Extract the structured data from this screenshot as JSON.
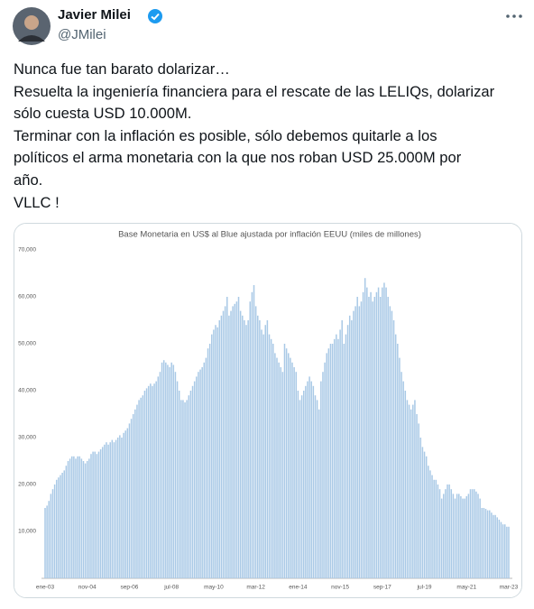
{
  "tweet": {
    "name": "Javier Milei",
    "handle": "@JMilei",
    "lines": [
      "Nunca fue tan barato dolarizar…",
      "Resuelta la ingeniería financiera para el rescate de las LELIQs, dolarizar",
      "sólo cuesta USD 10.000M.",
      "Terminar con la inflación es posible, sólo debemos quitarle a los",
      "políticos el arma monetaria con la que nos roban USD 25.000M  por",
      "año.",
      "VLLC !"
    ]
  },
  "chart_data": {
    "type": "bar",
    "title": "Base Monetaria en US$ al Blue ajustada por inflación EEUU (miles de millones)",
    "color": "#a9c9e6",
    "grid": false,
    "ylim": [
      0,
      70000
    ],
    "yticks": [
      {
        "value": 10000,
        "label": "10,000"
      },
      {
        "value": 20000,
        "label": "20,000"
      },
      {
        "value": 30000,
        "label": "30,000"
      },
      {
        "value": 40000,
        "label": "40,000"
      },
      {
        "value": 50000,
        "label": "50,000"
      },
      {
        "value": 60000,
        "label": "60,000"
      },
      {
        "value": 70000,
        "label": "70,000"
      }
    ],
    "categories": [
      "ene-03",
      null,
      null,
      null,
      null,
      null,
      null,
      null,
      null,
      null,
      null,
      null,
      null,
      null,
      null,
      null,
      null,
      null,
      null,
      null,
      null,
      null,
      "nov-04",
      null,
      null,
      null,
      null,
      null,
      null,
      null,
      null,
      null,
      null,
      null,
      null,
      null,
      null,
      null,
      null,
      null,
      null,
      null,
      null,
      null,
      "sep-06",
      null,
      null,
      null,
      null,
      null,
      null,
      null,
      null,
      null,
      null,
      null,
      null,
      null,
      null,
      null,
      null,
      null,
      null,
      null,
      null,
      null,
      "jul-08",
      null,
      null,
      null,
      null,
      null,
      null,
      null,
      null,
      null,
      null,
      null,
      null,
      null,
      null,
      null,
      null,
      null,
      null,
      null,
      null,
      null,
      "may-10",
      null,
      null,
      null,
      null,
      null,
      null,
      null,
      null,
      null,
      null,
      null,
      null,
      null,
      null,
      null,
      null,
      null,
      null,
      null,
      null,
      null,
      "mar-12",
      null,
      null,
      null,
      null,
      null,
      null,
      null,
      null,
      null,
      null,
      null,
      null,
      null,
      null,
      null,
      null,
      null,
      null,
      null,
      null,
      null,
      "ene-14",
      null,
      null,
      null,
      null,
      null,
      null,
      null,
      null,
      null,
      null,
      null,
      null,
      null,
      null,
      null,
      null,
      null,
      null,
      null,
      null,
      null,
      "nov-15",
      null,
      null,
      null,
      null,
      null,
      null,
      null,
      null,
      null,
      null,
      null,
      null,
      null,
      null,
      null,
      null,
      null,
      null,
      null,
      null,
      null,
      "sep-17",
      null,
      null,
      null,
      null,
      null,
      null,
      null,
      null,
      null,
      null,
      null,
      null,
      null,
      null,
      null,
      null,
      null,
      null,
      null,
      null,
      null,
      "jul-19",
      null,
      null,
      null,
      null,
      null,
      null,
      null,
      null,
      null,
      null,
      null,
      null,
      null,
      null,
      null,
      null,
      null,
      null,
      null,
      null,
      null,
      "may-21",
      null,
      null,
      null,
      null,
      null,
      null,
      null,
      null,
      null,
      null,
      null,
      null,
      null,
      null,
      null,
      null,
      null,
      null,
      null,
      null,
      null,
      "mar-23"
    ],
    "values": [
      15000,
      15500,
      16500,
      18000,
      19000,
      20000,
      21000,
      21500,
      22000,
      22500,
      23000,
      24000,
      25000,
      25500,
      26000,
      26000,
      25500,
      26000,
      26000,
      25500,
      25000,
      24500,
      25000,
      25500,
      26500,
      27000,
      27000,
      26500,
      27000,
      27500,
      28000,
      28500,
      29000,
      28500,
      29000,
      29500,
      29000,
      29500,
      30000,
      30500,
      30000,
      31000,
      31500,
      32000,
      33000,
      34000,
      35000,
      36000,
      37000,
      38000,
      38500,
      39000,
      40000,
      40500,
      41000,
      41500,
      41000,
      41500,
      42000,
      43000,
      44000,
      46000,
      46500,
      46000,
      45500,
      45000,
      46000,
      45500,
      44000,
      42000,
      40000,
      38000,
      38000,
      37500,
      38000,
      39000,
      40000,
      41000,
      42000,
      43000,
      44000,
      44500,
      45000,
      46000,
      47000,
      49000,
      50000,
      52000,
      53000,
      54000,
      53500,
      55000,
      56000,
      57000,
      58000,
      60000,
      56000,
      57000,
      58000,
      58500,
      59000,
      60000,
      57000,
      56000,
      55000,
      54000,
      55000,
      59000,
      61000,
      62500,
      58000,
      56000,
      55000,
      53000,
      52000,
      54000,
      55000,
      52000,
      51000,
      50000,
      48000,
      47000,
      46000,
      45000,
      44000,
      50000,
      49000,
      48000,
      47000,
      46000,
      45000,
      44000,
      40000,
      38000,
      39000,
      40000,
      41000,
      42000,
      43000,
      42000,
      41000,
      39000,
      38000,
      36000,
      42000,
      44000,
      46000,
      48000,
      49000,
      50000,
      50000,
      51000,
      52000,
      51000,
      53000,
      55000,
      50000,
      52000,
      54000,
      56000,
      55000,
      57000,
      58000,
      60000,
      58000,
      59000,
      61000,
      64000,
      62000,
      60000,
      61000,
      59000,
      60000,
      61000,
      62000,
      60000,
      62000,
      63000,
      62000,
      60000,
      58000,
      57000,
      55000,
      52000,
      50000,
      47000,
      44000,
      42000,
      40000,
      38000,
      37000,
      36000,
      37000,
      38000,
      35000,
      33000,
      30000,
      28000,
      27000,
      26000,
      24000,
      23000,
      22000,
      21000,
      21000,
      20000,
      19000,
      17000,
      18000,
      19000,
      20000,
      20000,
      19000,
      18000,
      17000,
      18000,
      18000,
      17500,
      17000,
      17000,
      17500,
      18000,
      19000,
      19000,
      19000,
      18500,
      18000,
      17000,
      15000,
      15000,
      14800,
      14500,
      14500,
      14000,
      13500,
      13500,
      13000,
      12500,
      12000,
      11500,
      11500,
      11000,
      11000
    ]
  }
}
